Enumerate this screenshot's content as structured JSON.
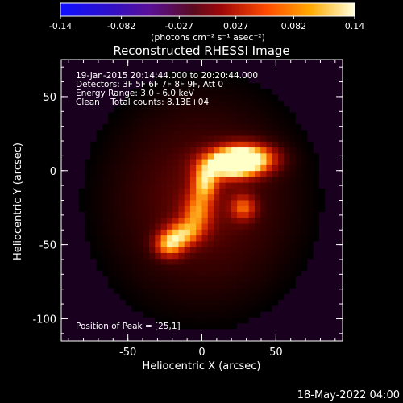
{
  "chart_data": {
    "type": "heatmap",
    "title": "Reconstructed RHESSI Image",
    "xlabel": "Heliocentric X (arcsec)",
    "ylabel": "Heliocentric Y (arcsec)",
    "xlim": [
      -95,
      95
    ],
    "ylim": [
      -115,
      75
    ],
    "x_ticks": [
      -50,
      0,
      50
    ],
    "y_ticks": [
      50,
      0,
      -50,
      -100
    ],
    "colorbar": {
      "ticks": [
        "-0.14",
        "-0.082",
        "-0.027",
        "0.027",
        "0.082",
        "0.14"
      ],
      "min": -0.14,
      "max": 0.14,
      "unit_label": "(photons cm⁻² s⁻¹ asec⁻²)"
    },
    "info_lines": [
      "19-Jan-2015 20:14:44.000 to 20:20:44.000",
      "Detectors: 3F 5F 6F 7F 8F 9F, Att 0",
      "Energy Range: 3.0 - 6.0 keV",
      "Clean    Total counts: 8.13E+04"
    ],
    "peak_label": "Position of Peak = [25,1]",
    "peak": [
      25,
      1
    ],
    "sources": [
      {
        "x": 30,
        "y": 8,
        "sx": 14,
        "sy": 7,
        "amp": 0.135
      },
      {
        "x": 18,
        "y": 4,
        "sx": 12,
        "sy": 6,
        "amp": 0.11
      },
      {
        "x": 2,
        "y": -8,
        "sx": 6,
        "sy": 8,
        "amp": 0.085
      },
      {
        "x": -3,
        "y": -28,
        "sx": 7,
        "sy": 9,
        "amp": 0.07
      },
      {
        "x": -12,
        "y": -42,
        "sx": 8,
        "sy": 6,
        "amp": 0.075
      },
      {
        "x": -22,
        "y": -50,
        "sx": 7,
        "sy": 6,
        "amp": 0.09
      },
      {
        "x": 28,
        "y": -25,
        "sx": 6,
        "sy": 6,
        "amp": 0.065
      },
      {
        "x": 0,
        "y": -20,
        "sx": 55,
        "sy": 60,
        "amp": 0.06
      }
    ],
    "background_level": -0.02,
    "timestamp": "18-May-2022 04:00"
  }
}
